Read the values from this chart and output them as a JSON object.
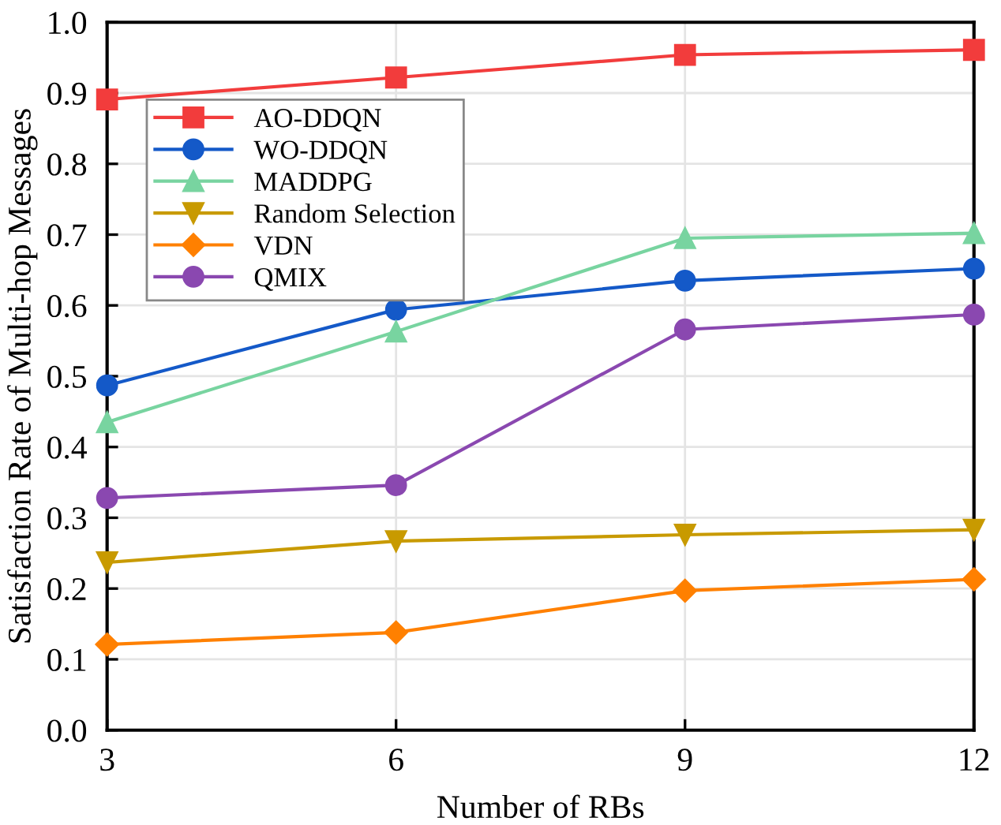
{
  "chart_data": {
    "type": "line",
    "xlabel": "Number of RBs",
    "ylabel": "Satisfaction Rate of Multi-hop Messages",
    "x": [
      3,
      6,
      9,
      12
    ],
    "xlim": [
      3,
      12
    ],
    "xticks": [
      3,
      6,
      9,
      12
    ],
    "ylim": [
      0,
      1.0
    ],
    "yticks": [
      {
        "value": 0,
        "label": "0.0"
      },
      0.1,
      0.2,
      0.3,
      0.4,
      0.5,
      0.6,
      0.7,
      0.8,
      0.9,
      {
        "value": 1.0,
        "label": "1.0"
      }
    ],
    "grid": true,
    "legend": "top left",
    "series": [
      {
        "name": "AO-DDQN",
        "color": "#f23c3c",
        "marker": "square",
        "values": [
          0.891,
          0.922,
          0.954,
          0.961
        ]
      },
      {
        "name": "WO-DDQN",
        "color": "#1459c8",
        "marker": "circle",
        "values": [
          0.487,
          0.594,
          0.635,
          0.652
        ]
      },
      {
        "name": "MADDPG",
        "color": "#78d4a0",
        "marker": "triangle",
        "values": [
          0.435,
          0.563,
          0.695,
          0.702
        ]
      },
      {
        "name": "Random Selection",
        "color": "#c89a00",
        "marker": "triangle_down",
        "values": [
          0.237,
          0.267,
          0.276,
          0.283
        ]
      },
      {
        "name": "VDN",
        "color": "#ff8000",
        "marker": "diamond",
        "values": [
          0.121,
          0.138,
          0.197,
          0.213
        ]
      },
      {
        "name": "QMIX",
        "color": "#8a48b0",
        "marker": "circle",
        "values": [
          0.328,
          0.346,
          0.566,
          0.587
        ]
      }
    ]
  }
}
